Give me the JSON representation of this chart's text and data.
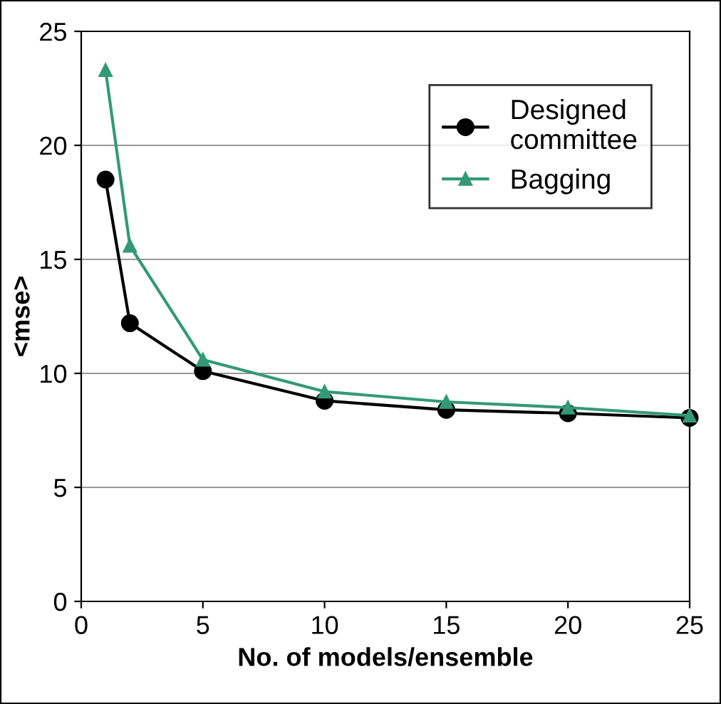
{
  "chart_data": {
    "type": "line",
    "xlabel": "No. of models/ensemble",
    "ylabel": "<mse>",
    "x": [
      1,
      2,
      5,
      10,
      15,
      20,
      25
    ],
    "series": [
      {
        "name": "Designed\ncommittee",
        "color": "#000000",
        "marker": "circle",
        "values": [
          18.5,
          12.2,
          10.1,
          8.8,
          8.4,
          8.25,
          8.05
        ]
      },
      {
        "name": "Bagging",
        "color": "#339977",
        "marker": "triangle",
        "values": [
          23.3,
          15.6,
          10.6,
          9.2,
          8.75,
          8.5,
          8.15
        ]
      }
    ],
    "xlim": [
      0,
      25
    ],
    "xticks": [
      0,
      5,
      10,
      15,
      20,
      25
    ],
    "ylim": [
      0,
      25
    ],
    "yticks": [
      0,
      5,
      10,
      15,
      20,
      25
    ],
    "grid": "y",
    "legend": "top right"
  }
}
